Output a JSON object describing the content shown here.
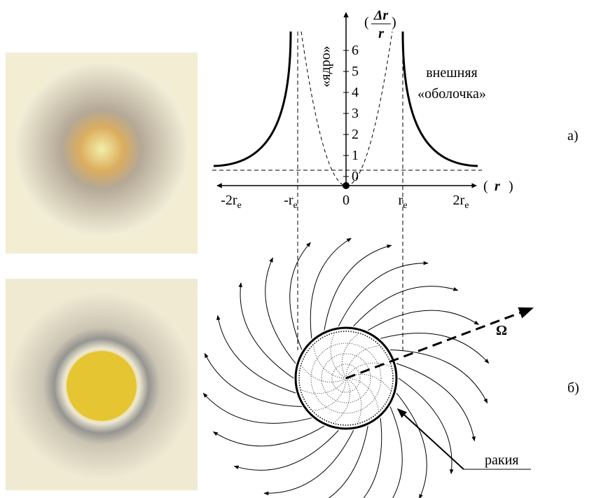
{
  "labels": {
    "a": "а)",
    "b": "б)"
  },
  "graph": {
    "y_label": {
      "open": "(",
      "num": "Δr",
      "den": "r",
      "close": ")"
    },
    "y_ticks": [
      0,
      1,
      2,
      3,
      4,
      5,
      6
    ],
    "x_label": {
      "open": "(",
      "var": "r",
      "close": ")"
    },
    "x_ticks": [
      {
        "main": "-2r",
        "sub": "e"
      },
      {
        "main": "-r",
        "sub": "e"
      },
      {
        "main": "0"
      },
      {
        "main": "r",
        "sub": "e"
      },
      {
        "main": "2r",
        "sub": "e"
      }
    ],
    "core": "«ядро»",
    "shell": [
      "внешняя",
      "«оболочка»"
    ]
  },
  "field": {
    "omega": "Ω",
    "rakia": "ракия"
  }
}
